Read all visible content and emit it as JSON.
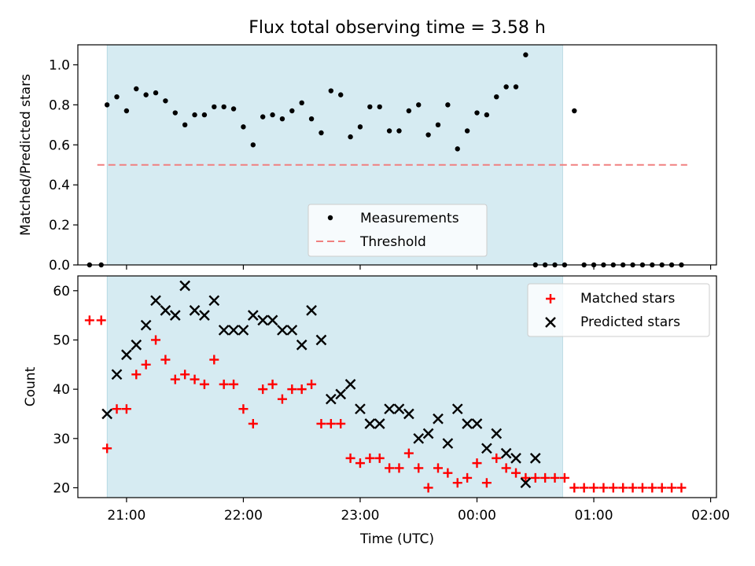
{
  "chart_data": [
    {
      "type": "scatter",
      "title": "Flux total observing time = 3.58 h",
      "ylabel": "Matched/Predicted stars",
      "xlabel": "",
      "xlim": [
        "20:35",
        "02:03"
      ],
      "ylim": [
        0,
        1.1
      ],
      "yticks": [
        "0.0",
        "0.2",
        "0.4",
        "0.6",
        "0.8",
        "1.0"
      ],
      "shaded_span": [
        "20:50",
        "00:44"
      ],
      "threshold": {
        "value": 0.5,
        "x_range": [
          "20:45",
          "01:48"
        ]
      },
      "legend": {
        "position": "lower center",
        "entries": [
          "Measurements",
          "Threshold"
        ]
      },
      "colors": {
        "measurements": "#000000",
        "threshold": "#f08080",
        "span": "#add8e6"
      },
      "series": [
        {
          "name": "Measurements",
          "x": [
            "20:41",
            "20:47",
            "20:50",
            "20:55",
            "21:00",
            "21:05",
            "21:10",
            "21:15",
            "21:20",
            "21:25",
            "21:30",
            "21:35",
            "21:40",
            "21:45",
            "21:50",
            "21:55",
            "22:00",
            "22:05",
            "22:10",
            "22:15",
            "22:20",
            "22:25",
            "22:30",
            "22:35",
            "22:40",
            "22:45",
            "22:50",
            "22:55",
            "23:00",
            "23:05",
            "23:10",
            "23:15",
            "23:20",
            "23:25",
            "23:30",
            "23:35",
            "23:40",
            "23:45",
            "23:50",
            "23:55",
            "00:00",
            "00:05",
            "00:10",
            "00:15",
            "00:20",
            "00:25",
            "00:30",
            "00:35",
            "00:40",
            "00:45",
            "00:50",
            "00:55",
            "01:00",
            "01:05",
            "01:10",
            "01:15",
            "01:20",
            "01:25",
            "01:30",
            "01:35",
            "01:40",
            "01:45"
          ],
          "y": [
            0,
            0,
            0.8,
            0.84,
            0.77,
            0.88,
            0.85,
            0.86,
            0.82,
            0.76,
            0.7,
            0.75,
            0.75,
            0.79,
            0.79,
            0.78,
            0.69,
            0.6,
            0.74,
            0.75,
            0.73,
            0.77,
            0.81,
            0.73,
            0.66,
            0.87,
            0.85,
            0.64,
            0.69,
            0.79,
            0.79,
            0.67,
            0.67,
            0.77,
            0.8,
            0.65,
            0.7,
            0.8,
            0.58,
            0.67,
            0.76,
            0.75,
            0.84,
            0.89,
            0.89,
            1.05,
            0,
            0,
            0,
            0,
            0.77,
            0,
            0,
            0,
            0,
            0,
            0,
            0,
            0,
            0,
            0,
            0
          ]
        }
      ]
    },
    {
      "type": "scatter",
      "title": "",
      "ylabel": "Count",
      "xlabel": "Time (UTC)",
      "xlim": [
        "20:35",
        "02:03"
      ],
      "ylim": [
        18,
        63
      ],
      "yticks": [
        "20",
        "30",
        "40",
        "50",
        "60"
      ],
      "xticks": [
        "21:00",
        "22:00",
        "23:00",
        "00:00",
        "01:00",
        "02:00"
      ],
      "shaded_span": [
        "20:50",
        "00:44"
      ],
      "legend": {
        "position": "upper right",
        "entries": [
          "Matched stars",
          "Predicted stars"
        ]
      },
      "colors": {
        "matched": "#ff0000",
        "predicted": "#000000",
        "span": "#add8e6"
      },
      "series": [
        {
          "name": "Matched stars",
          "x": [
            "20:41",
            "20:47",
            "20:50",
            "20:55",
            "21:00",
            "21:05",
            "21:10",
            "21:15",
            "21:20",
            "21:25",
            "21:30",
            "21:35",
            "21:40",
            "21:45",
            "21:50",
            "21:55",
            "22:00",
            "22:05",
            "22:10",
            "22:15",
            "22:20",
            "22:25",
            "22:30",
            "22:35",
            "22:40",
            "22:45",
            "22:50",
            "22:55",
            "23:00",
            "23:05",
            "23:10",
            "23:15",
            "23:20",
            "23:25",
            "23:30",
            "23:35",
            "23:40",
            "23:45",
            "23:50",
            "23:55",
            "00:00",
            "00:05",
            "00:10",
            "00:15",
            "00:20",
            "00:25",
            "00:30",
            "00:35",
            "00:40",
            "00:45",
            "00:50",
            "00:55",
            "01:00",
            "01:05",
            "01:10",
            "01:15",
            "01:20",
            "01:25",
            "01:30",
            "01:35",
            "01:40",
            "01:45"
          ],
          "y": [
            54,
            54,
            28,
            36,
            36,
            43,
            45,
            50,
            46,
            42,
            43,
            42,
            41,
            46,
            41,
            41,
            36,
            33,
            40,
            41,
            38,
            40,
            40,
            41,
            33,
            33,
            33,
            26,
            25,
            26,
            26,
            24,
            24,
            27,
            24,
            20,
            24,
            23,
            21,
            22,
            25,
            21,
            26,
            24,
            23,
            22,
            22,
            22,
            22,
            22,
            20,
            20,
            20,
            20,
            20,
            20,
            20,
            20,
            20,
            20,
            20,
            20
          ]
        },
        {
          "name": "Predicted stars",
          "x": [
            "20:50",
            "20:55",
            "21:00",
            "21:05",
            "21:10",
            "21:15",
            "21:20",
            "21:25",
            "21:30",
            "21:35",
            "21:40",
            "21:45",
            "21:50",
            "21:55",
            "22:00",
            "22:05",
            "22:10",
            "22:15",
            "22:20",
            "22:25",
            "22:30",
            "22:35",
            "22:40",
            "22:45",
            "22:50",
            "22:55",
            "23:00",
            "23:05",
            "23:10",
            "23:15",
            "23:20",
            "23:25",
            "23:30",
            "23:35",
            "23:40",
            "23:45",
            "23:50",
            "23:55",
            "00:00",
            "00:05",
            "00:10",
            "00:15",
            "00:20",
            "00:25",
            "00:30",
            "00:35",
            "00:40",
            "00:45",
            "00:50"
          ],
          "y": [
            35,
            43,
            47,
            49,
            53,
            58,
            56,
            55,
            61,
            56,
            55,
            58,
            52,
            52,
            52,
            55,
            54,
            54,
            52,
            52,
            49,
            56,
            50,
            38,
            39,
            41,
            36,
            33,
            33,
            36,
            36,
            35,
            30,
            31,
            34,
            29,
            36,
            33,
            33,
            28,
            31,
            27,
            26,
            21,
            26,
            null,
            null,
            null,
            null
          ]
        }
      ]
    }
  ]
}
